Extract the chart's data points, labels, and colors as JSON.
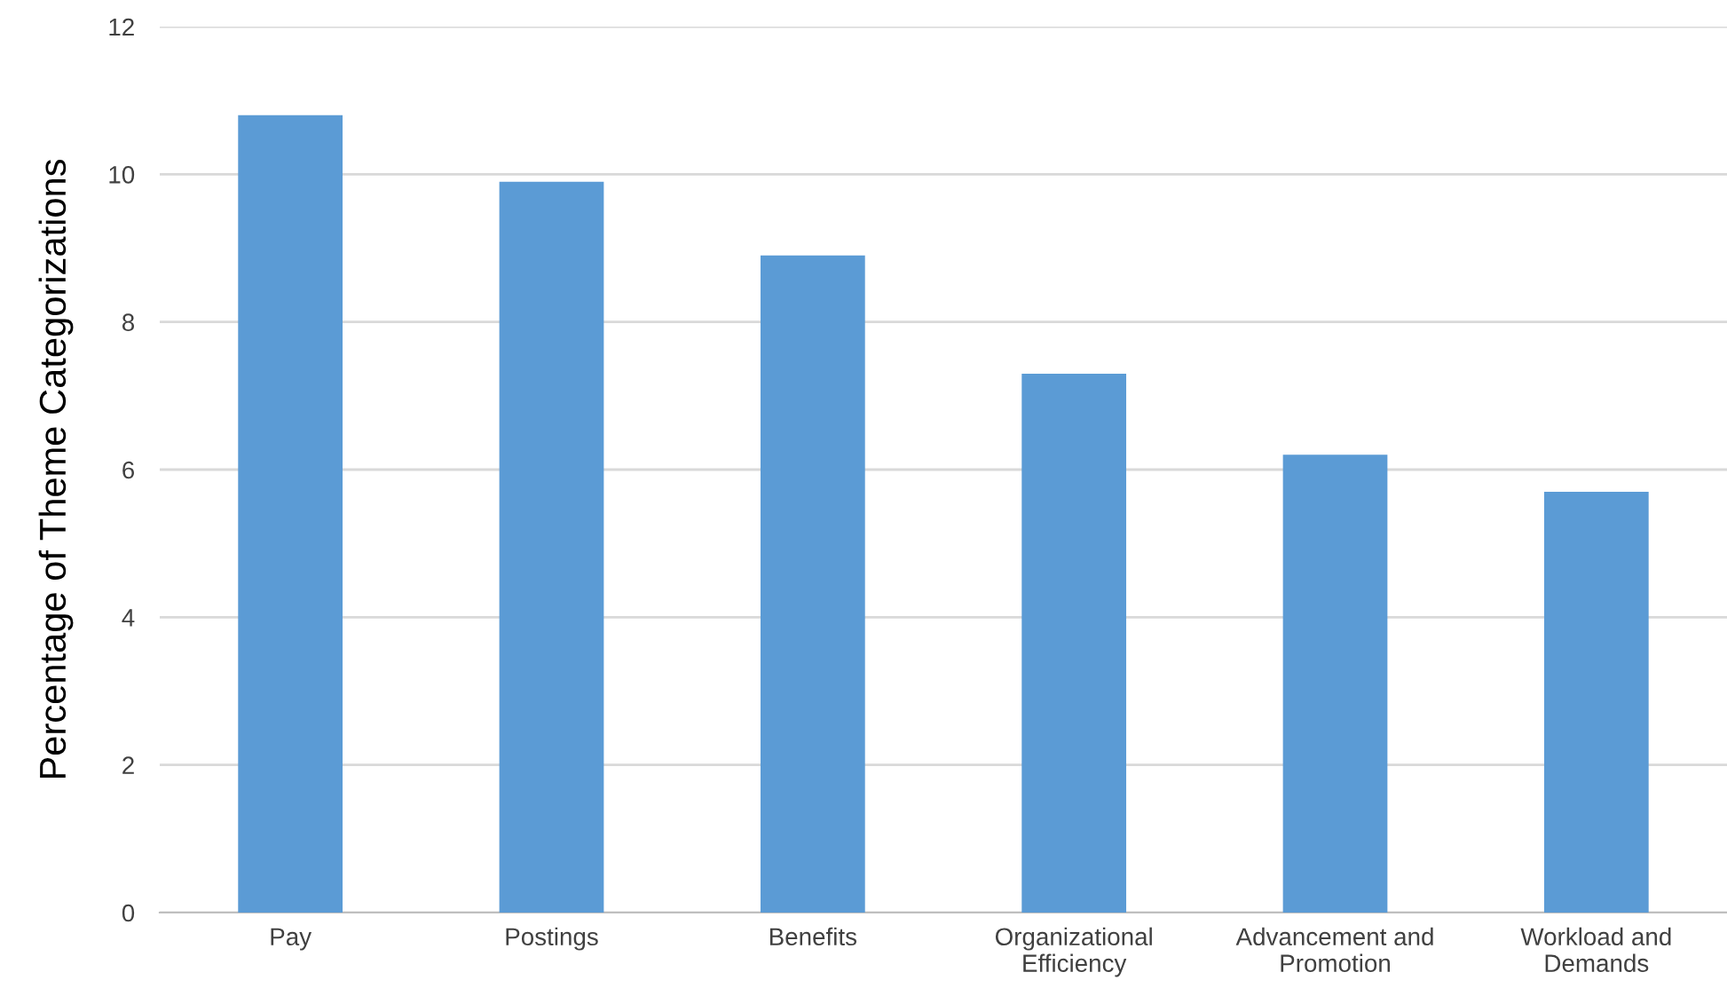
{
  "chart_data": {
    "type": "bar",
    "ylabel": "Percentage of Theme Categorizations",
    "categories": [
      "Pay",
      "Postings",
      "Benefits",
      "Organizational\nEfficiency",
      "Advancement and\nPromotion",
      "Workload and\nDemands"
    ],
    "values": [
      10.8,
      9.9,
      8.9,
      7.3,
      6.2,
      5.7
    ],
    "color": "#5b9bd5",
    "ylim": [
      0,
      12
    ],
    "yticks": [
      0,
      2,
      4,
      6,
      8,
      10,
      12
    ],
    "grid": "y"
  }
}
